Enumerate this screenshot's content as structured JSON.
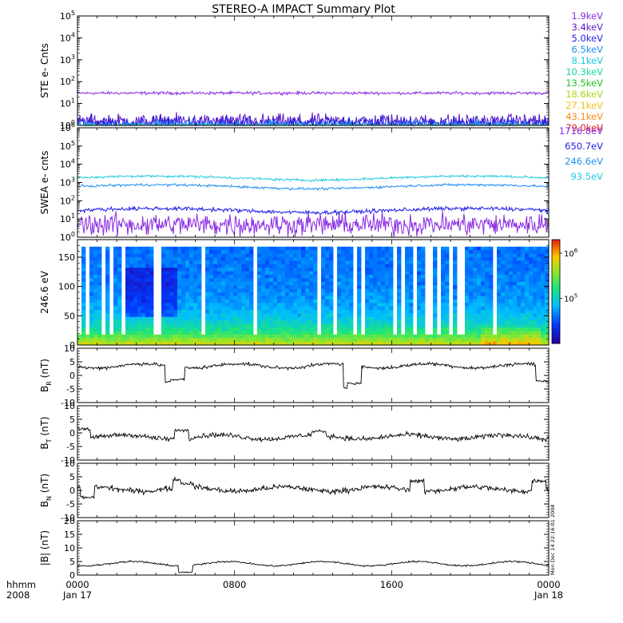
{
  "chart_data": {
    "type": "line",
    "title": "STEREO-A IMPACT Summary Plot",
    "x_labels": {
      "row1": [
        "0000",
        "0800",
        "1600",
        "0000"
      ],
      "row2": [
        "Jan 17",
        "",
        "",
        "Jan 18"
      ],
      "prefix_row1": "hhmm",
      "prefix_row2": "2008"
    },
    "x_range_hours": [
      0,
      24
    ],
    "x_tick_hours": [
      0,
      8,
      16,
      24
    ],
    "stamp": "Mon Dec 14 22:16:01 2008",
    "panels": [
      {
        "id": "ste",
        "ylabel": "STE e- Cnts",
        "scale": "log",
        "ylim": [
          1,
          100000
        ],
        "ticks": [
          {
            "v": 1,
            "b": "10",
            "e": "0"
          },
          {
            "v": 10,
            "b": "10",
            "e": "1"
          },
          {
            "v": 100,
            "b": "10",
            "e": "2"
          },
          {
            "v": 1000,
            "b": "10",
            "e": "3"
          },
          {
            "v": 10000,
            "b": "10",
            "e": "4"
          },
          {
            "v": 100000,
            "b": "10",
            "e": "5"
          }
        ],
        "series": [
          {
            "name": "1.9keV",
            "color": "#8a2be2",
            "level": 30,
            "noise": 0.05
          },
          {
            "name": "3.4keV",
            "color": "#5b16c8",
            "level": 1.5,
            "noise": 0.25
          },
          {
            "name": "5.0keV",
            "color": "#1f1fe6",
            "level": 1.2,
            "noise": 0.25
          },
          {
            "name": "6.5keV",
            "color": "#1f8ff0",
            "level": 1.05,
            "noise": 0.15
          },
          {
            "name": "8.1keV",
            "color": "#20c8e0",
            "level": 1.0,
            "noise": 0.05
          },
          {
            "name": "10.3keV",
            "color": "#18d89a",
            "level": 1.0,
            "noise": 0.02
          },
          {
            "name": "13.5keV",
            "color": "#22c41c",
            "level": 1.0,
            "noise": 0.0
          },
          {
            "name": "18.6keV",
            "color": "#a8d81a",
            "level": 1.0,
            "noise": 0.0
          },
          {
            "name": "27.1keV",
            "color": "#f0c018",
            "level": 1.0,
            "noise": 0.0
          },
          {
            "name": "43.1keV",
            "color": "#ff8a10",
            "level": 1.0,
            "noise": 0.0
          },
          {
            "name": "79.0keV",
            "color": "#e02020",
            "level": 1.0,
            "noise": 0.0
          }
        ]
      },
      {
        "id": "swea",
        "ylabel": "SWEA e- cnts",
        "scale": "log",
        "ylim": [
          1,
          1000000
        ],
        "ticks": [
          {
            "v": 1,
            "b": "10",
            "e": "0"
          },
          {
            "v": 10,
            "b": "10",
            "e": "1"
          },
          {
            "v": 100,
            "b": "10",
            "e": "2"
          },
          {
            "v": 1000,
            "b": "10",
            "e": "3"
          },
          {
            "v": 10000,
            "b": "10",
            "e": "4"
          },
          {
            "v": 100000,
            "b": "10",
            "e": "5"
          },
          {
            "v": 1000000,
            "b": "10",
            "e": "6"
          }
        ],
        "series": [
          {
            "name": "1716.8eV",
            "color": "#8a2be2",
            "level": 5,
            "noise": 0.45
          },
          {
            "name": "650.7eV",
            "color": "#1f1fe6",
            "level": 30,
            "noise": 0.08
          },
          {
            "name": "246.6eV",
            "color": "#1f8ff0",
            "level": 600,
            "noise": 0.05
          },
          {
            "name": "93.5eV",
            "color": "#20c8e0",
            "level": 1800,
            "noise": 0.05
          }
        ]
      },
      {
        "id": "spec",
        "ylabel": "246.6 eV",
        "scale": "linear",
        "ylim": [
          0,
          180
        ],
        "ticks": [
          {
            "v": 0,
            "t": "0"
          },
          {
            "v": 50,
            "t": "50"
          },
          {
            "v": 100,
            "t": "100"
          },
          {
            "v": 150,
            "t": "150"
          }
        ],
        "colorbar": {
          "scale": "log",
          "range": [
            10000,
            2000000
          ],
          "ticks": [
            {
              "v": 100000,
              "b": "10",
              "e": "5"
            },
            {
              "v": 1000000,
              "b": "10",
              "e": "6"
            }
          ]
        }
      },
      {
        "id": "br",
        "ylabel": "B",
        "ylabel_sub": "R",
        "ylabel_unit": "(nT)",
        "scale": "linear",
        "ylim": [
          -10,
          10
        ],
        "ticks": [
          {
            "v": -10,
            "t": "-10"
          },
          {
            "v": -5,
            "t": "-5"
          },
          {
            "v": 0,
            "t": "0"
          },
          {
            "v": 5,
            "t": "5"
          },
          {
            "v": 10,
            "t": "10"
          }
        ],
        "series": [
          {
            "name": "BR",
            "color": "#000000",
            "level": 3.5,
            "noise": 0.6,
            "events": [
              [
                4.8,
                -2.5
              ],
              [
                5.1,
                -1.5
              ],
              [
                13.9,
                -4.5
              ],
              [
                14.1,
                -3.0
              ],
              [
                23.7,
                -2.0
              ]
            ]
          }
        ]
      },
      {
        "id": "bt",
        "ylabel": "B",
        "ylabel_sub": "T",
        "ylabel_unit": "(nT)",
        "scale": "linear",
        "ylim": [
          -10,
          10
        ],
        "ticks": [
          {
            "v": -10,
            "t": "-10"
          },
          {
            "v": -5,
            "t": "-5"
          },
          {
            "v": 0,
            "t": "0"
          },
          {
            "v": 5,
            "t": "5"
          },
          {
            "v": 10,
            "t": "10"
          }
        ],
        "series": [
          {
            "name": "BT",
            "color": "#000000",
            "level": -1.5,
            "noise": 0.9,
            "events": [
              [
                0.3,
                1.5
              ],
              [
                5.3,
                1.0
              ],
              [
                12.3,
                0.5
              ]
            ]
          }
        ]
      },
      {
        "id": "bn",
        "ylabel": "B",
        "ylabel_sub": "N",
        "ylabel_unit": "(nT)",
        "scale": "linear",
        "ylim": [
          -10,
          10
        ],
        "ticks": [
          {
            "v": -10,
            "t": "-10"
          },
          {
            "v": -5,
            "t": "-5"
          },
          {
            "v": 0,
            "t": "0"
          },
          {
            "v": 5,
            "t": "5"
          },
          {
            "v": 10,
            "t": "10"
          }
        ],
        "series": [
          {
            "name": "BN",
            "color": "#000000",
            "level": 0.5,
            "noise": 1.0,
            "events": [
              [
                0.5,
                -2.5
              ],
              [
                5.2,
                4.0
              ],
              [
                5.6,
                2.5
              ],
              [
                17.3,
                3.5
              ],
              [
                23.5,
                3.5
              ]
            ]
          }
        ]
      },
      {
        "id": "bmag",
        "ylabel": "|B|",
        "ylabel_unit": "(nT)",
        "scale": "linear",
        "ylim": [
          0,
          20
        ],
        "ticks": [
          {
            "v": 0,
            "t": "0"
          },
          {
            "v": 5,
            "t": "5"
          },
          {
            "v": 10,
            "t": "10"
          },
          {
            "v": 15,
            "t": "15"
          },
          {
            "v": 20,
            "t": "20"
          }
        ],
        "series": [
          {
            "name": "|B|",
            "color": "#000000",
            "level": 4.2,
            "noise": 0.3,
            "events": [
              [
                5.5,
                1.0
              ]
            ]
          }
        ]
      }
    ]
  }
}
